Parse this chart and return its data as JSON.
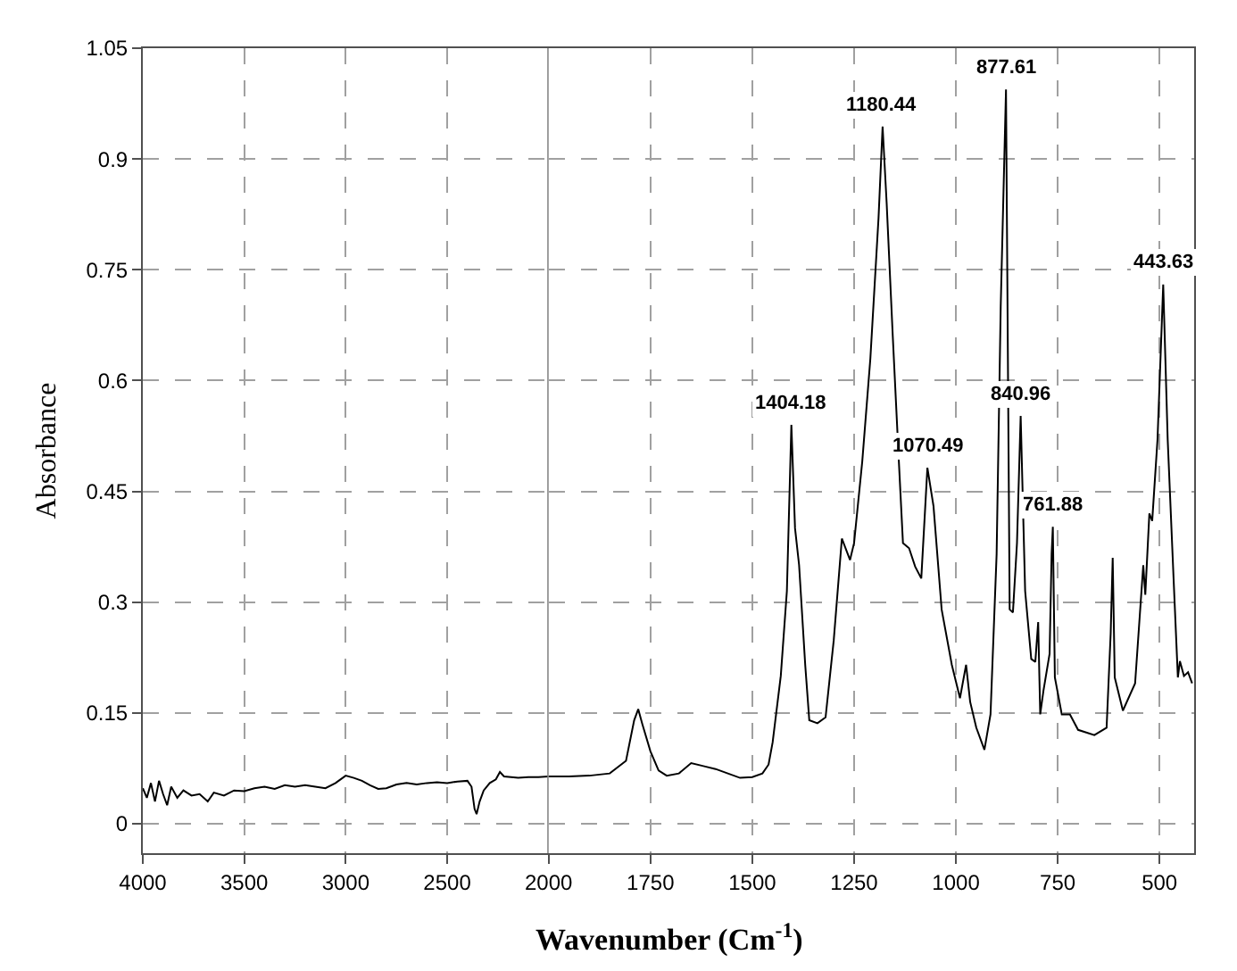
{
  "chart_data": [
    {
      "type": "line",
      "ylabel": "Absorbance",
      "xlim": [
        4000,
        2000
      ],
      "xticks": [
        4000,
        3500,
        3000,
        2500,
        2000
      ],
      "ylim": [
        -0.04,
        1.05
      ],
      "yticks": [
        0,
        0.15,
        0.3,
        0.45,
        0.6,
        0.75,
        0.9,
        1.05
      ],
      "grid": true,
      "tick_labels": true,
      "ref_lines": [
        {
          "axis": "x",
          "value": 2000,
          "label": null,
          "color": "#808080"
        }
      ],
      "series": [
        {
          "color": "#000000",
          "x": [
            4000,
            3980,
            3960,
            3940,
            3920,
            3900,
            3880,
            3860,
            3830,
            3800,
            3760,
            3720,
            3680,
            3650,
            3600,
            3550,
            3500,
            3450,
            3400,
            3350,
            3300,
            3250,
            3200,
            3150,
            3100,
            3050,
            3000,
            2960,
            2920,
            2880,
            2840,
            2800,
            2750,
            2700,
            2650,
            2600,
            2550,
            2500,
            2450,
            2400,
            2380,
            2365,
            2355,
            2340,
            2320,
            2290,
            2260,
            2240,
            2220,
            2150,
            2100,
            2050,
            2000
          ],
          "values": [
            0.048,
            0.035,
            0.055,
            0.03,
            0.058,
            0.04,
            0.025,
            0.05,
            0.035,
            0.045,
            0.038,
            0.04,
            0.03,
            0.042,
            0.038,
            0.045,
            0.044,
            0.048,
            0.05,
            0.047,
            0.052,
            0.05,
            0.052,
            0.05,
            0.048,
            0.055,
            0.065,
            0.062,
            0.058,
            0.052,
            0.047,
            0.048,
            0.053,
            0.055,
            0.053,
            0.055,
            0.056,
            0.055,
            0.057,
            0.058,
            0.05,
            0.02,
            0.013,
            0.03,
            0.045,
            0.055,
            0.06,
            0.07,
            0.064,
            0.062,
            0.063,
            0.063,
            0.064
          ]
        }
      ]
    },
    {
      "type": "line",
      "xlabel": "Wavenumber (Cm$^{-1}$)",
      "xlim": [
        2000,
        415
      ],
      "xticks": [
        1750,
        1500,
        1250,
        1000,
        750,
        500
      ],
      "ylim": [
        -0.04,
        1.05
      ],
      "yticks": [
        0,
        0.15,
        0.3,
        0.45,
        0.6,
        0.75,
        0.9,
        1.05
      ],
      "grid": true,
      "tick_labels": "x",
      "annotations": [
        {
          "text": "1404.18",
          "x": 1404,
          "y": 0.54
        },
        {
          "text": "1180.44",
          "x": 1180,
          "y": 0.944
        },
        {
          "text": "877.61",
          "x": 877,
          "y": 0.994
        },
        {
          "text": "1070.49",
          "x": 1070,
          "y": 0.482
        },
        {
          "text": "840.96",
          "x": 841,
          "y": 0.552
        },
        {
          "text": "761.88",
          "x": 762,
          "y": 0.402
        },
        {
          "text": "443.63",
          "x": 491,
          "y": 0.73
        }
      ],
      "series": [
        {
          "color": "#000000",
          "x": [
            2000,
            1950,
            1900,
            1850,
            1810,
            1790,
            1780,
            1770,
            1750,
            1730,
            1710,
            1680,
            1650,
            1620,
            1590,
            1560,
            1530,
            1500,
            1475,
            1460,
            1450,
            1430,
            1415,
            1404,
            1395,
            1385,
            1370,
            1360,
            1340,
            1320,
            1300,
            1280,
            1260,
            1250,
            1230,
            1210,
            1190,
            1180,
            1170,
            1155,
            1140,
            1130,
            1115,
            1100,
            1085,
            1070,
            1055,
            1035,
            1010,
            990,
            975,
            965,
            950,
            930,
            915,
            900,
            890,
            877,
            868,
            860,
            850,
            841,
            830,
            815,
            805,
            798,
            793,
            785,
            770,
            765,
            762,
            757,
            740,
            720,
            700,
            660,
            630,
            620,
            615,
            610,
            590,
            560,
            540,
            535,
            525,
            518,
            505,
            491,
            480,
            465,
            455,
            450,
            440,
            430,
            420
          ],
          "values": [
            0.064,
            0.064,
            0.065,
            0.068,
            0.085,
            0.14,
            0.155,
            0.135,
            0.098,
            0.072,
            0.065,
            0.068,
            0.082,
            0.078,
            0.074,
            0.068,
            0.062,
            0.063,
            0.068,
            0.08,
            0.11,
            0.2,
            0.315,
            0.54,
            0.4,
            0.35,
            0.215,
            0.14,
            0.136,
            0.144,
            0.248,
            0.386,
            0.357,
            0.38,
            0.49,
            0.63,
            0.82,
            0.944,
            0.84,
            0.66,
            0.49,
            0.38,
            0.373,
            0.348,
            0.332,
            0.482,
            0.43,
            0.29,
            0.215,
            0.17,
            0.215,
            0.165,
            0.13,
            0.1,
            0.148,
            0.365,
            0.7,
            0.994,
            0.29,
            0.286,
            0.38,
            0.552,
            0.315,
            0.223,
            0.219,
            0.273,
            0.148,
            0.18,
            0.23,
            0.365,
            0.402,
            0.198,
            0.148,
            0.148,
            0.127,
            0.12,
            0.13,
            0.257,
            0.36,
            0.198,
            0.153,
            0.19,
            0.35,
            0.31,
            0.42,
            0.41,
            0.52,
            0.73,
            0.52,
            0.325,
            0.198,
            0.22,
            0.2,
            0.205,
            0.19
          ]
        }
      ]
    }
  ]
}
